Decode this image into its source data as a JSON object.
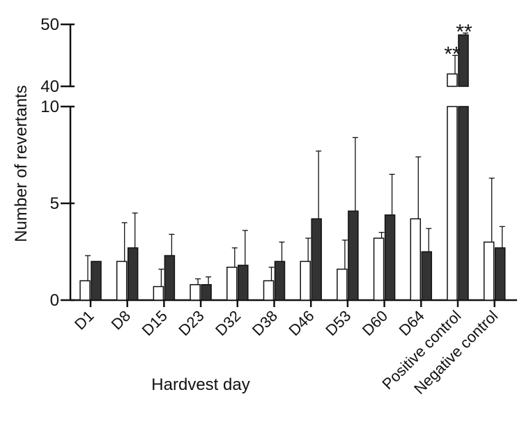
{
  "chart_data": {
    "type": "bar",
    "title": "",
    "xlabel": "Hardvest day",
    "ylabel": "Number of revertants",
    "categories": [
      "D1",
      "D8",
      "D15",
      "D23",
      "D32",
      "D38",
      "D46",
      "D53",
      "D60",
      "D64",
      "Positive control",
      "Negative control"
    ],
    "series": [
      {
        "fill": "#ffffff",
        "values": [
          1.0,
          2.0,
          0.7,
          0.8,
          1.7,
          1.0,
          2.0,
          1.6,
          3.2,
          4.2,
          42.0,
          3.0
        ],
        "errors": [
          1.3,
          2.0,
          0.9,
          0.3,
          1.0,
          0.7,
          1.2,
          1.5,
          0.3,
          3.2,
          3.0,
          3.3
        ]
      },
      {
        "fill": "#333333",
        "values": [
          2.0,
          2.7,
          2.3,
          0.8,
          1.8,
          2.0,
          4.2,
          4.6,
          4.4,
          2.5,
          48.3,
          2.7
        ],
        "errors": [
          0.0,
          1.8,
          1.1,
          0.4,
          1.8,
          1.0,
          3.5,
          3.8,
          2.1,
          1.2,
          0.3,
          1.1
        ]
      }
    ],
    "y_lower_segment": {
      "range": [
        0,
        10
      ],
      "ticks": [
        0,
        5,
        10
      ]
    },
    "y_upper_segment": {
      "range": [
        40,
        50
      ],
      "ticks": [
        40,
        50
      ]
    },
    "annotations": [
      {
        "category": "Positive control",
        "series": 0,
        "text": "**"
      },
      {
        "category": "Positive control",
        "series": 1,
        "text": "**"
      }
    ],
    "grid": false,
    "legend": "none"
  }
}
